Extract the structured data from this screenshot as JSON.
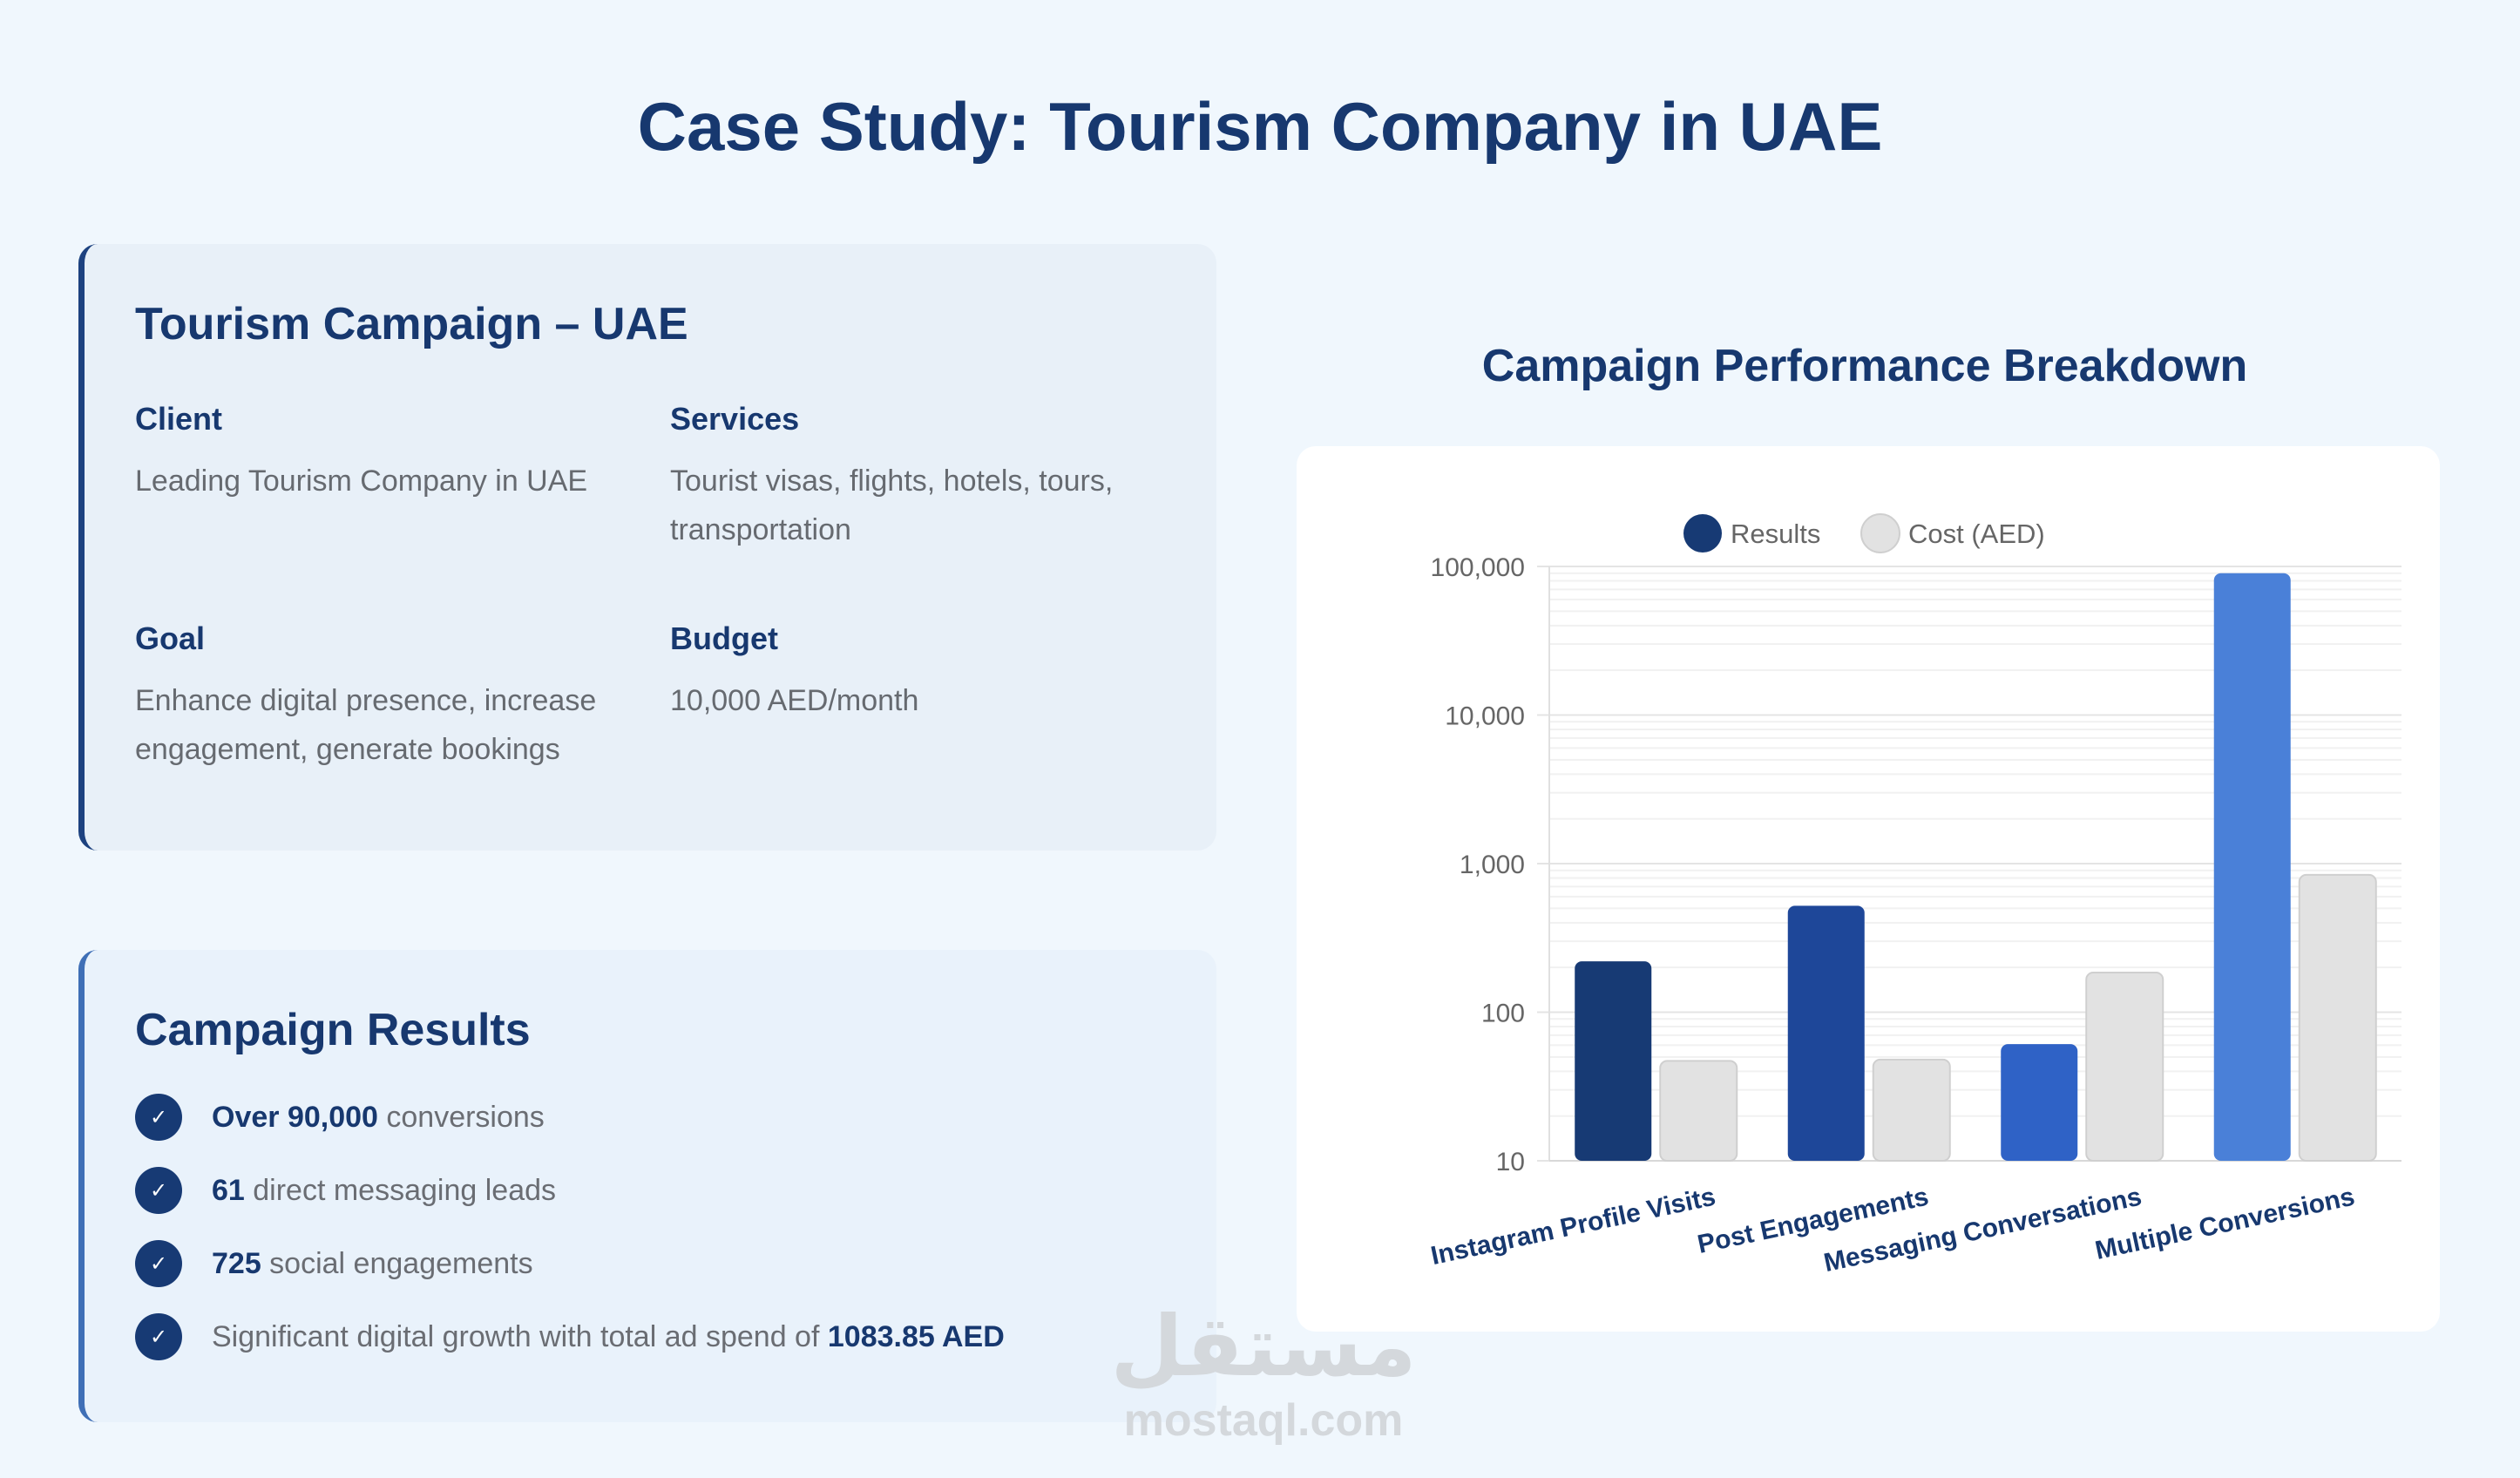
{
  "page": {
    "title": "Case Study: Tourism Company in UAE"
  },
  "project_card": {
    "title": "Tourism Campaign – UAE",
    "client_label": "Client",
    "client_value": "Leading Tourism Company in UAE",
    "services_label": "Services",
    "services_value": "Tourist visas, flights, hotels, tours, transportation",
    "goal_label": "Goal",
    "goal_value": "Enhance digital presence, increase engagement, generate bookings",
    "budget_label": "Budget",
    "budget_value": "10,000 AED/month"
  },
  "results_card": {
    "title": "Campaign Results",
    "items": [
      {
        "strong": "Over 90,000",
        "rest": " conversions"
      },
      {
        "strong": "61",
        "rest": " direct messaging leads"
      },
      {
        "strong": "725",
        "rest": " social engagements"
      },
      {
        "prefix": "Significant digital growth with total ad spend of ",
        "strong": "1083.85 AED"
      }
    ]
  },
  "chart_data": {
    "type": "bar",
    "title": "Campaign Performance Breakdown",
    "categories": [
      "Instagram Profile Visits",
      "Post Engagements",
      "Messaging Conversations",
      "Multiple Conversions"
    ],
    "series": [
      {
        "name": "Results",
        "values": [
          220,
          520,
          61,
          90000
        ],
        "colors": [
          "#173a74",
          "#1e4799",
          "#2f62c6",
          "#4a80d8"
        ]
      },
      {
        "name": "Cost (AED)",
        "values": [
          47,
          48,
          185,
          840
        ],
        "color": "#e2e2e2"
      }
    ],
    "yscale": "log",
    "ylim": [
      10,
      100000
    ],
    "yticks": [
      "10",
      "100",
      "1,000",
      "10,000",
      "100,000"
    ],
    "legend_position": "top",
    "grid": true
  },
  "watermark": {
    "arabic": "مستقل",
    "latin": "mostaql.com"
  },
  "colors": {
    "primary": "#17386f",
    "accent": "#3f6fb6",
    "background": "#f0f7fd"
  }
}
